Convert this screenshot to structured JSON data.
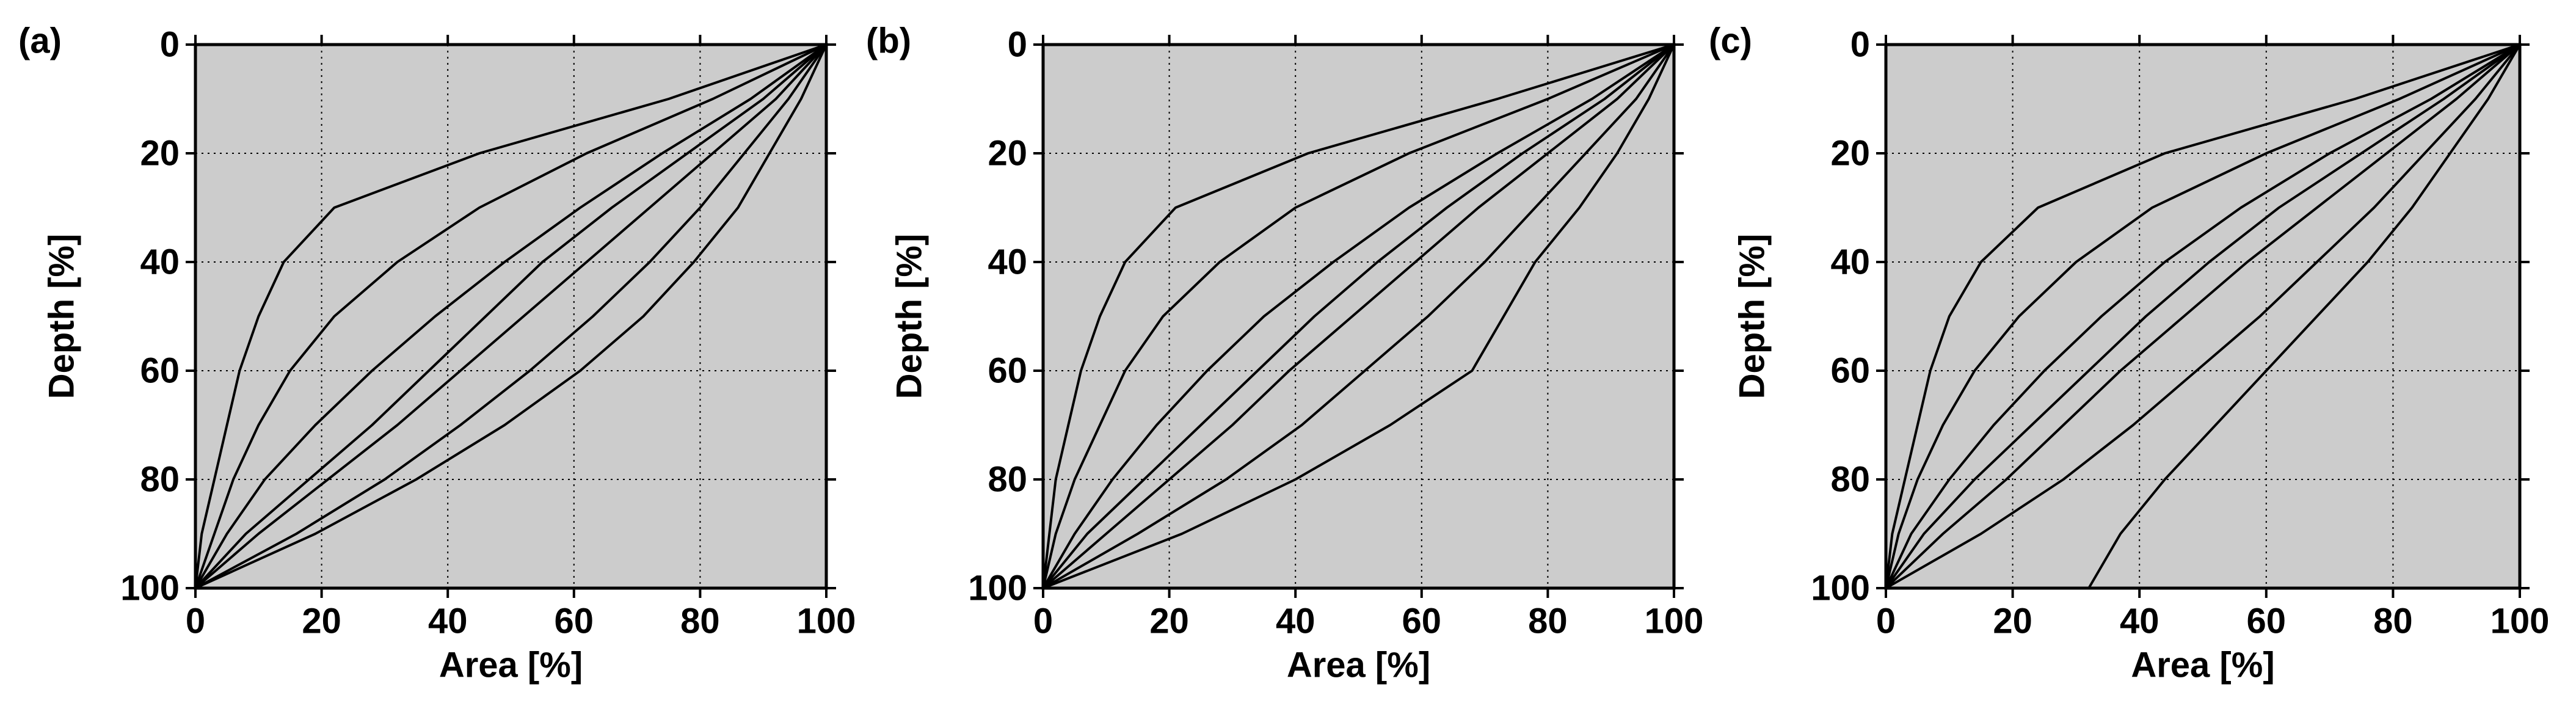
{
  "chart_data": [
    {
      "type": "line",
      "panel_label": "(a)",
      "x_label": "Area [%]",
      "y_label": "Depth [%]",
      "xlim": [
        0,
        100
      ],
      "ylim": [
        100,
        0
      ],
      "xticks": [
        0,
        20,
        40,
        60,
        80,
        100
      ],
      "yticks": [
        0,
        20,
        40,
        60,
        80,
        100
      ],
      "grid": true,
      "background": "#cccccc",
      "series": [
        {
          "color": "#000000",
          "x": [
            100,
            75,
            45,
            22,
            14,
            10,
            7,
            5,
            3,
            1,
            0
          ],
          "values": [
            0,
            10,
            20,
            30,
            40,
            50,
            60,
            70,
            80,
            90,
            100
          ]
        },
        {
          "color": "#000000",
          "x": [
            100,
            82,
            62,
            45,
            32,
            22,
            15,
            10,
            6,
            3,
            0
          ],
          "values": [
            0,
            10,
            20,
            30,
            40,
            50,
            60,
            70,
            80,
            90,
            100
          ]
        },
        {
          "color": "#000000",
          "x": [
            100,
            88,
            74,
            61,
            49,
            38,
            28,
            19,
            11,
            5,
            0
          ],
          "values": [
            0,
            10,
            20,
            30,
            40,
            50,
            60,
            70,
            80,
            90,
            100
          ]
        },
        {
          "color": "#000000",
          "x": [
            100,
            92,
            82,
            72,
            62,
            52,
            42,
            32,
            21,
            10,
            0
          ],
          "values": [
            0,
            10,
            20,
            30,
            40,
            50,
            60,
            70,
            80,
            90,
            100
          ]
        },
        {
          "color": "#000000",
          "x": [
            100,
            94,
            87,
            80,
            72,
            63,
            53,
            42,
            30,
            16,
            0
          ],
          "values": [
            0,
            10,
            20,
            30,
            40,
            50,
            60,
            70,
            80,
            90,
            100
          ]
        },
        {
          "color": "#000000",
          "x": [
            100,
            96,
            91,
            86,
            79,
            71,
            61,
            49,
            35,
            19,
            0
          ],
          "values": [
            0,
            10,
            20,
            30,
            40,
            50,
            60,
            70,
            80,
            90,
            100
          ]
        },
        {
          "color": "#000000",
          "x": [
            100,
            90,
            78,
            66,
            55,
            46,
            37,
            28,
            18,
            8,
            0
          ],
          "values": [
            0,
            10,
            20,
            30,
            40,
            50,
            60,
            70,
            80,
            90,
            100
          ]
        }
      ]
    },
    {
      "type": "line",
      "panel_label": "(b)",
      "x_label": "Area [%]",
      "y_label": "Depth [%]",
      "xlim": [
        0,
        100
      ],
      "ylim": [
        100,
        0
      ],
      "xticks": [
        0,
        20,
        40,
        60,
        80,
        100
      ],
      "yticks": [
        0,
        20,
        40,
        60,
        80,
        100
      ],
      "grid": true,
      "background": "#cccccc",
      "series": [
        {
          "color": "#000000",
          "x": [
            100,
            72,
            42,
            21,
            13,
            9,
            6,
            4,
            2,
            1,
            0
          ],
          "values": [
            0,
            10,
            20,
            30,
            40,
            50,
            60,
            70,
            80,
            90,
            100
          ]
        },
        {
          "color": "#000000",
          "x": [
            100,
            80,
            58,
            40,
            28,
            19,
            13,
            9,
            5,
            2,
            0
          ],
          "values": [
            0,
            10,
            20,
            30,
            40,
            50,
            60,
            70,
            80,
            90,
            100
          ]
        },
        {
          "color": "#000000",
          "x": [
            100,
            87,
            72,
            58,
            46,
            35,
            26,
            18,
            11,
            5,
            0
          ],
          "values": [
            0,
            10,
            20,
            30,
            40,
            50,
            60,
            70,
            80,
            90,
            100
          ]
        },
        {
          "color": "#000000",
          "x": [
            100,
            91,
            80,
            69,
            59,
            49,
            39,
            30,
            20,
            10,
            0
          ],
          "values": [
            0,
            10,
            20,
            30,
            40,
            50,
            60,
            70,
            80,
            90,
            100
          ]
        },
        {
          "color": "#000000",
          "x": [
            100,
            94,
            86,
            78,
            70,
            61,
            51,
            41,
            29,
            15,
            0
          ],
          "values": [
            0,
            10,
            20,
            30,
            40,
            50,
            60,
            70,
            80,
            90,
            100
          ]
        },
        {
          "color": "#000000",
          "x": [
            100,
            96,
            91,
            85,
            78,
            73,
            68,
            55,
            40,
            22,
            0
          ],
          "values": [
            0,
            10,
            20,
            30,
            40,
            50,
            60,
            70,
            80,
            90,
            100
          ]
        },
        {
          "color": "#000000",
          "x": [
            100,
            89,
            76,
            64,
            53,
            43,
            34,
            25,
            16,
            7,
            0
          ],
          "values": [
            0,
            10,
            20,
            30,
            40,
            50,
            60,
            70,
            80,
            90,
            100
          ]
        }
      ]
    },
    {
      "type": "line",
      "panel_label": "(c)",
      "x_label": "Area [%]",
      "y_label": "Depth [%]",
      "xlim": [
        0,
        100
      ],
      "ylim": [
        100,
        0
      ],
      "xticks": [
        0,
        20,
        40,
        60,
        80,
        100
      ],
      "yticks": [
        0,
        20,
        40,
        60,
        80,
        100
      ],
      "grid": true,
      "background": "#cccccc",
      "series": [
        {
          "color": "#000000",
          "x": [
            100,
            74,
            44,
            24,
            15,
            10,
            7,
            5,
            3,
            1,
            0
          ],
          "values": [
            0,
            10,
            20,
            30,
            40,
            50,
            60,
            70,
            80,
            90,
            100
          ]
        },
        {
          "color": "#000000",
          "x": [
            100,
            81,
            60,
            42,
            30,
            21,
            14,
            9,
            5,
            2,
            0
          ],
          "values": [
            0,
            10,
            20,
            30,
            40,
            50,
            60,
            70,
            80,
            90,
            100
          ]
        },
        {
          "color": "#000000",
          "x": [
            100,
            86,
            70,
            56,
            44,
            34,
            25,
            17,
            10,
            4,
            0
          ],
          "values": [
            0,
            10,
            20,
            30,
            40,
            50,
            60,
            70,
            80,
            90,
            100
          ]
        },
        {
          "color": "#000000",
          "x": [
            100,
            90,
            79,
            68,
            57,
            47,
            37,
            28,
            19,
            9,
            0
          ],
          "values": [
            0,
            10,
            20,
            30,
            40,
            50,
            60,
            70,
            80,
            90,
            100
          ]
        },
        {
          "color": "#000000",
          "x": [
            100,
            93,
            85,
            77,
            68,
            59,
            49,
            39,
            28,
            15,
            0
          ],
          "values": [
            0,
            10,
            20,
            30,
            40,
            50,
            60,
            70,
            80,
            90,
            100
          ]
        },
        {
          "color": "#000000",
          "x": [
            100,
            95,
            89,
            83,
            76,
            68,
            60,
            52,
            44,
            37,
            32
          ],
          "values": [
            0,
            10,
            20,
            30,
            40,
            50,
            60,
            70,
            80,
            90,
            100
          ]
        },
        {
          "color": "#000000",
          "x": [
            100,
            88,
            75,
            62,
            51,
            41,
            32,
            23,
            14,
            6,
            0
          ],
          "values": [
            0,
            10,
            20,
            30,
            40,
            50,
            60,
            70,
            80,
            90,
            100
          ]
        }
      ]
    }
  ]
}
